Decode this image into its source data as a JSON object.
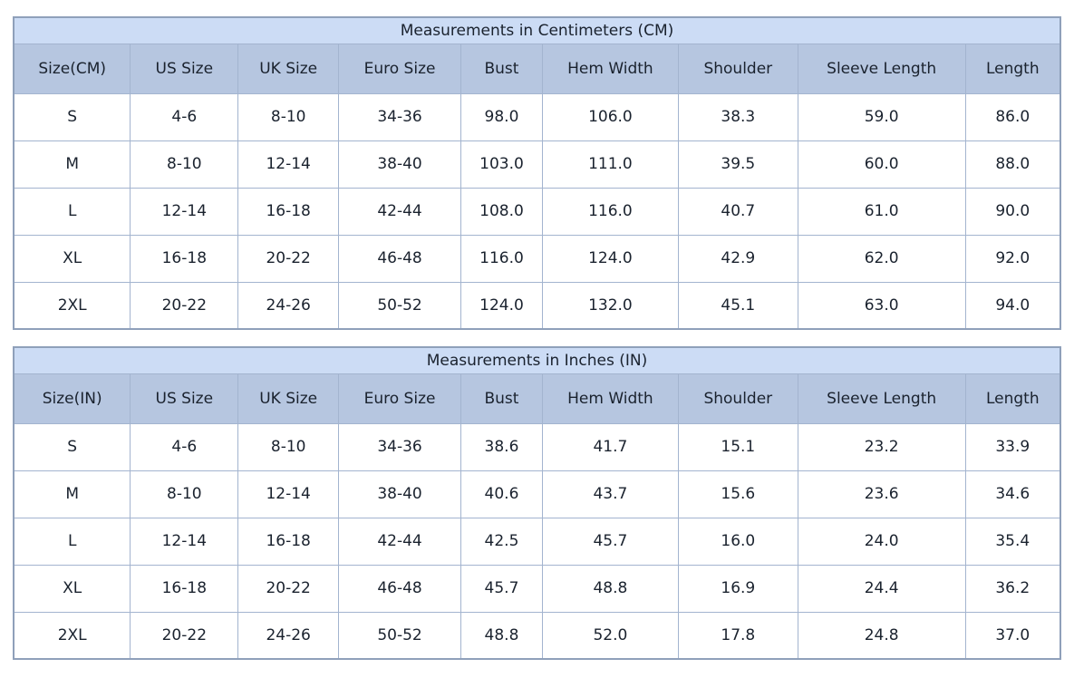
{
  "colors": {
    "title_bg": "#ccdcf5",
    "header_bg": "#b6c6e0",
    "cell_bg": "#ffffff",
    "inner_border": "#a3b4cf",
    "outer_border": "#8fa0ba",
    "text": "#1a222e"
  },
  "chart_data": [
    {
      "type": "table",
      "title": "Measurements in Centimeters (CM)",
      "columns": [
        "Size(CM)",
        "US Size",
        "UK Size",
        "Euro Size",
        "Bust",
        "Hem Width",
        "Shoulder",
        "Sleeve Length",
        "Length"
      ],
      "rows": [
        [
          "S",
          "4-6",
          "8-10",
          "34-36",
          "98.0",
          "106.0",
          "38.3",
          "59.0",
          "86.0"
        ],
        [
          "M",
          "8-10",
          "12-14",
          "38-40",
          "103.0",
          "111.0",
          "39.5",
          "60.0",
          "88.0"
        ],
        [
          "L",
          "12-14",
          "16-18",
          "42-44",
          "108.0",
          "116.0",
          "40.7",
          "61.0",
          "90.0"
        ],
        [
          "XL",
          "16-18",
          "20-22",
          "46-48",
          "116.0",
          "124.0",
          "42.9",
          "62.0",
          "92.0"
        ],
        [
          "2XL",
          "20-22",
          "24-26",
          "50-52",
          "124.0",
          "132.0",
          "45.1",
          "63.0",
          "94.0"
        ]
      ]
    },
    {
      "type": "table",
      "title": "Measurements in Inches (IN)",
      "columns": [
        "Size(IN)",
        "US Size",
        "UK Size",
        "Euro Size",
        "Bust",
        "Hem Width",
        "Shoulder",
        "Sleeve Length",
        "Length"
      ],
      "rows": [
        [
          "S",
          "4-6",
          "8-10",
          "34-36",
          "38.6",
          "41.7",
          "15.1",
          "23.2",
          "33.9"
        ],
        [
          "M",
          "8-10",
          "12-14",
          "38-40",
          "40.6",
          "43.7",
          "15.6",
          "23.6",
          "34.6"
        ],
        [
          "L",
          "12-14",
          "16-18",
          "42-44",
          "42.5",
          "45.7",
          "16.0",
          "24.0",
          "35.4"
        ],
        [
          "XL",
          "16-18",
          "20-22",
          "46-48",
          "45.7",
          "48.8",
          "16.9",
          "24.4",
          "36.2"
        ],
        [
          "2XL",
          "20-22",
          "24-26",
          "50-52",
          "48.8",
          "52.0",
          "17.8",
          "24.8",
          "37.0"
        ]
      ]
    }
  ]
}
